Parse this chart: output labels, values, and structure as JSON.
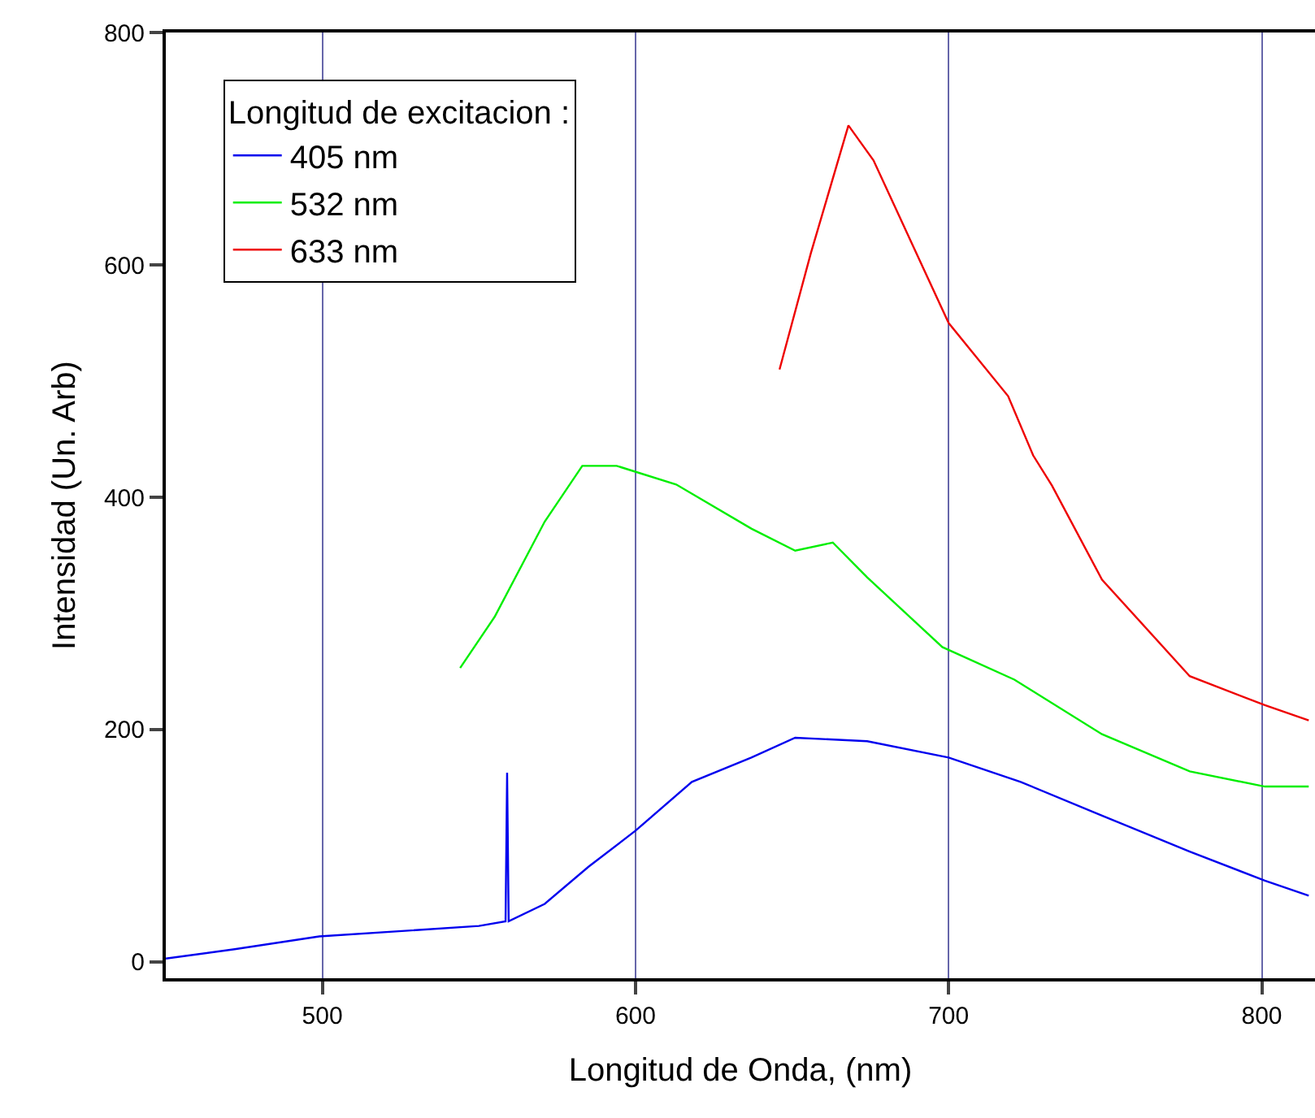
{
  "chart_data": {
    "type": "line",
    "xlabel": "Longitud de Onda, (nm)",
    "ylabel": "Intensidad (Un. Arb)",
    "legend_title": "Longitud de excitacion :",
    "xlim": [
      450,
      817
    ],
    "xticks": [
      500,
      600,
      700,
      800
    ],
    "ylim": [
      -14,
      800
    ],
    "yticks": [
      0,
      200,
      400,
      600,
      800
    ],
    "grid": "x",
    "legend": "top left",
    "marker": "none",
    "line_style": "solid",
    "series": [
      {
        "name": "405 nm",
        "color": "#0000ee",
        "x": [
          450,
          472,
          499,
          550,
          558.5,
          559,
          559.5,
          571,
          585,
          600,
          618,
          637,
          651,
          674,
          700,
          723,
          749,
          777,
          801,
          815
        ],
        "values": [
          3,
          11,
          22,
          31,
          35,
          163,
          35,
          50,
          82,
          113,
          155,
          176,
          193,
          190,
          176,
          155,
          126,
          95,
          70,
          57
        ]
      },
      {
        "name": "532 nm",
        "color": "#00ee00",
        "x": [
          544,
          555,
          571,
          583,
          594,
          613,
          637,
          651,
          663,
          674,
          698,
          721,
          749,
          777,
          801,
          815
        ],
        "values": [
          253,
          297,
          379,
          427,
          427,
          411,
          373,
          354,
          361,
          331,
          271,
          243,
          196,
          164,
          151,
          151
        ]
      },
      {
        "name": "633 nm",
        "color": "#ee0000",
        "x": [
          646,
          656,
          668,
          676,
          688,
          700,
          719,
          727,
          733,
          749,
          777,
          801,
          815
        ],
        "values": [
          510,
          610,
          720,
          690,
          620,
          550,
          487,
          436,
          410,
          329,
          246,
          221,
          208
        ]
      }
    ]
  }
}
